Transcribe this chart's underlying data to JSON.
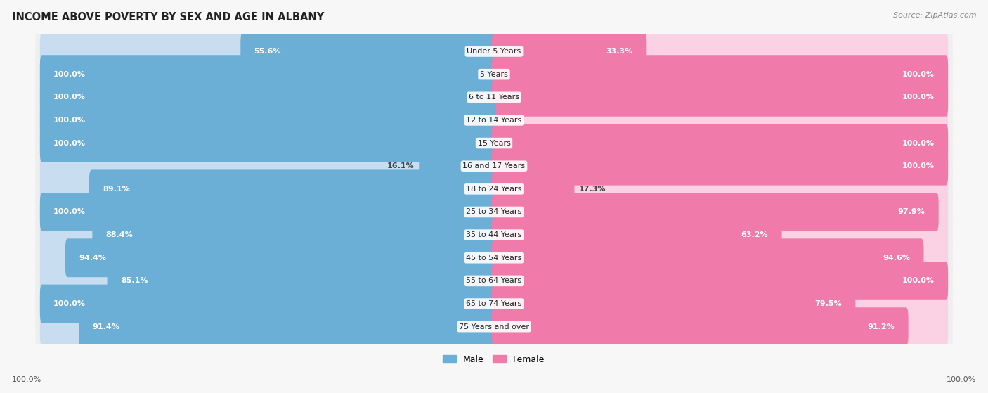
{
  "title": "INCOME ABOVE POVERTY BY SEX AND AGE IN ALBANY",
  "source": "Source: ZipAtlas.com",
  "categories": [
    "Under 5 Years",
    "5 Years",
    "6 to 11 Years",
    "12 to 14 Years",
    "15 Years",
    "16 and 17 Years",
    "18 to 24 Years",
    "25 to 34 Years",
    "35 to 44 Years",
    "45 to 54 Years",
    "55 to 64 Years",
    "65 to 74 Years",
    "75 Years and over"
  ],
  "male_values": [
    55.6,
    100.0,
    100.0,
    100.0,
    100.0,
    16.1,
    89.1,
    100.0,
    88.4,
    94.4,
    85.1,
    100.0,
    91.4
  ],
  "female_values": [
    33.3,
    100.0,
    100.0,
    0.0,
    100.0,
    100.0,
    17.3,
    97.9,
    63.2,
    94.6,
    100.0,
    79.5,
    91.2
  ],
  "male_color": "#6baed6",
  "male_color_light": "#c8ddf0",
  "female_color": "#f07aaa",
  "female_color_light": "#fbd2e4",
  "row_bg_color": "#efefef",
  "bg_color": "#f7f7f7",
  "title_fontsize": 10.5,
  "label_fontsize": 8.0,
  "source_fontsize": 8.0,
  "legend_fontsize": 9.0,
  "max_val": 100.0
}
